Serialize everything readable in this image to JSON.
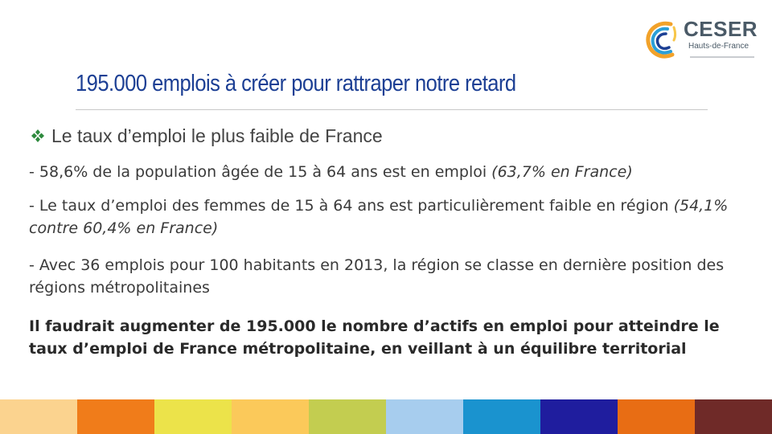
{
  "logo": {
    "name": "CESER",
    "subtitle": "Hauts-de-France"
  },
  "title": "195.000 emplois à créer pour rattraper notre retard",
  "bullet": {
    "text": "Le taux d’emploi le plus faible de France"
  },
  "paragraphs": {
    "p1_main": "- 58,6% de la population âgée de 15 à 64 ans est en emploi ",
    "p1_italic": "(63,7% en France)",
    "p2_main": "- Le taux d’emploi des femmes de 15 à 64 ans est particulièrement faible en région ",
    "p2_italic": "(54,1% contre 60,4% en France)",
    "p3": "- Avec 36 emplois pour 100 habitants en 2013, la région se classe en dernière position des régions métropolitaines",
    "p4": "Il faudrait augmenter de 195.000 le nombre d’actifs en emploi pour atteindre le taux d’emploi de France métropolitaine, en veillant à un équilibre territorial"
  },
  "colors": {
    "title": "#1c3f94",
    "bullet_icon": "#2e8a3e",
    "colorbar": [
      "#fbd38f",
      "#f07c1a",
      "#ece34a",
      "#fbc95a",
      "#c3cd50",
      "#a7cdee",
      "#1a93cf",
      "#1f1d9e",
      "#e86d14",
      "#6f2a28"
    ]
  },
  "icons": {
    "bullet": "diamond-cluster-icon",
    "logo": "ceser-swirl-logo-icon"
  }
}
